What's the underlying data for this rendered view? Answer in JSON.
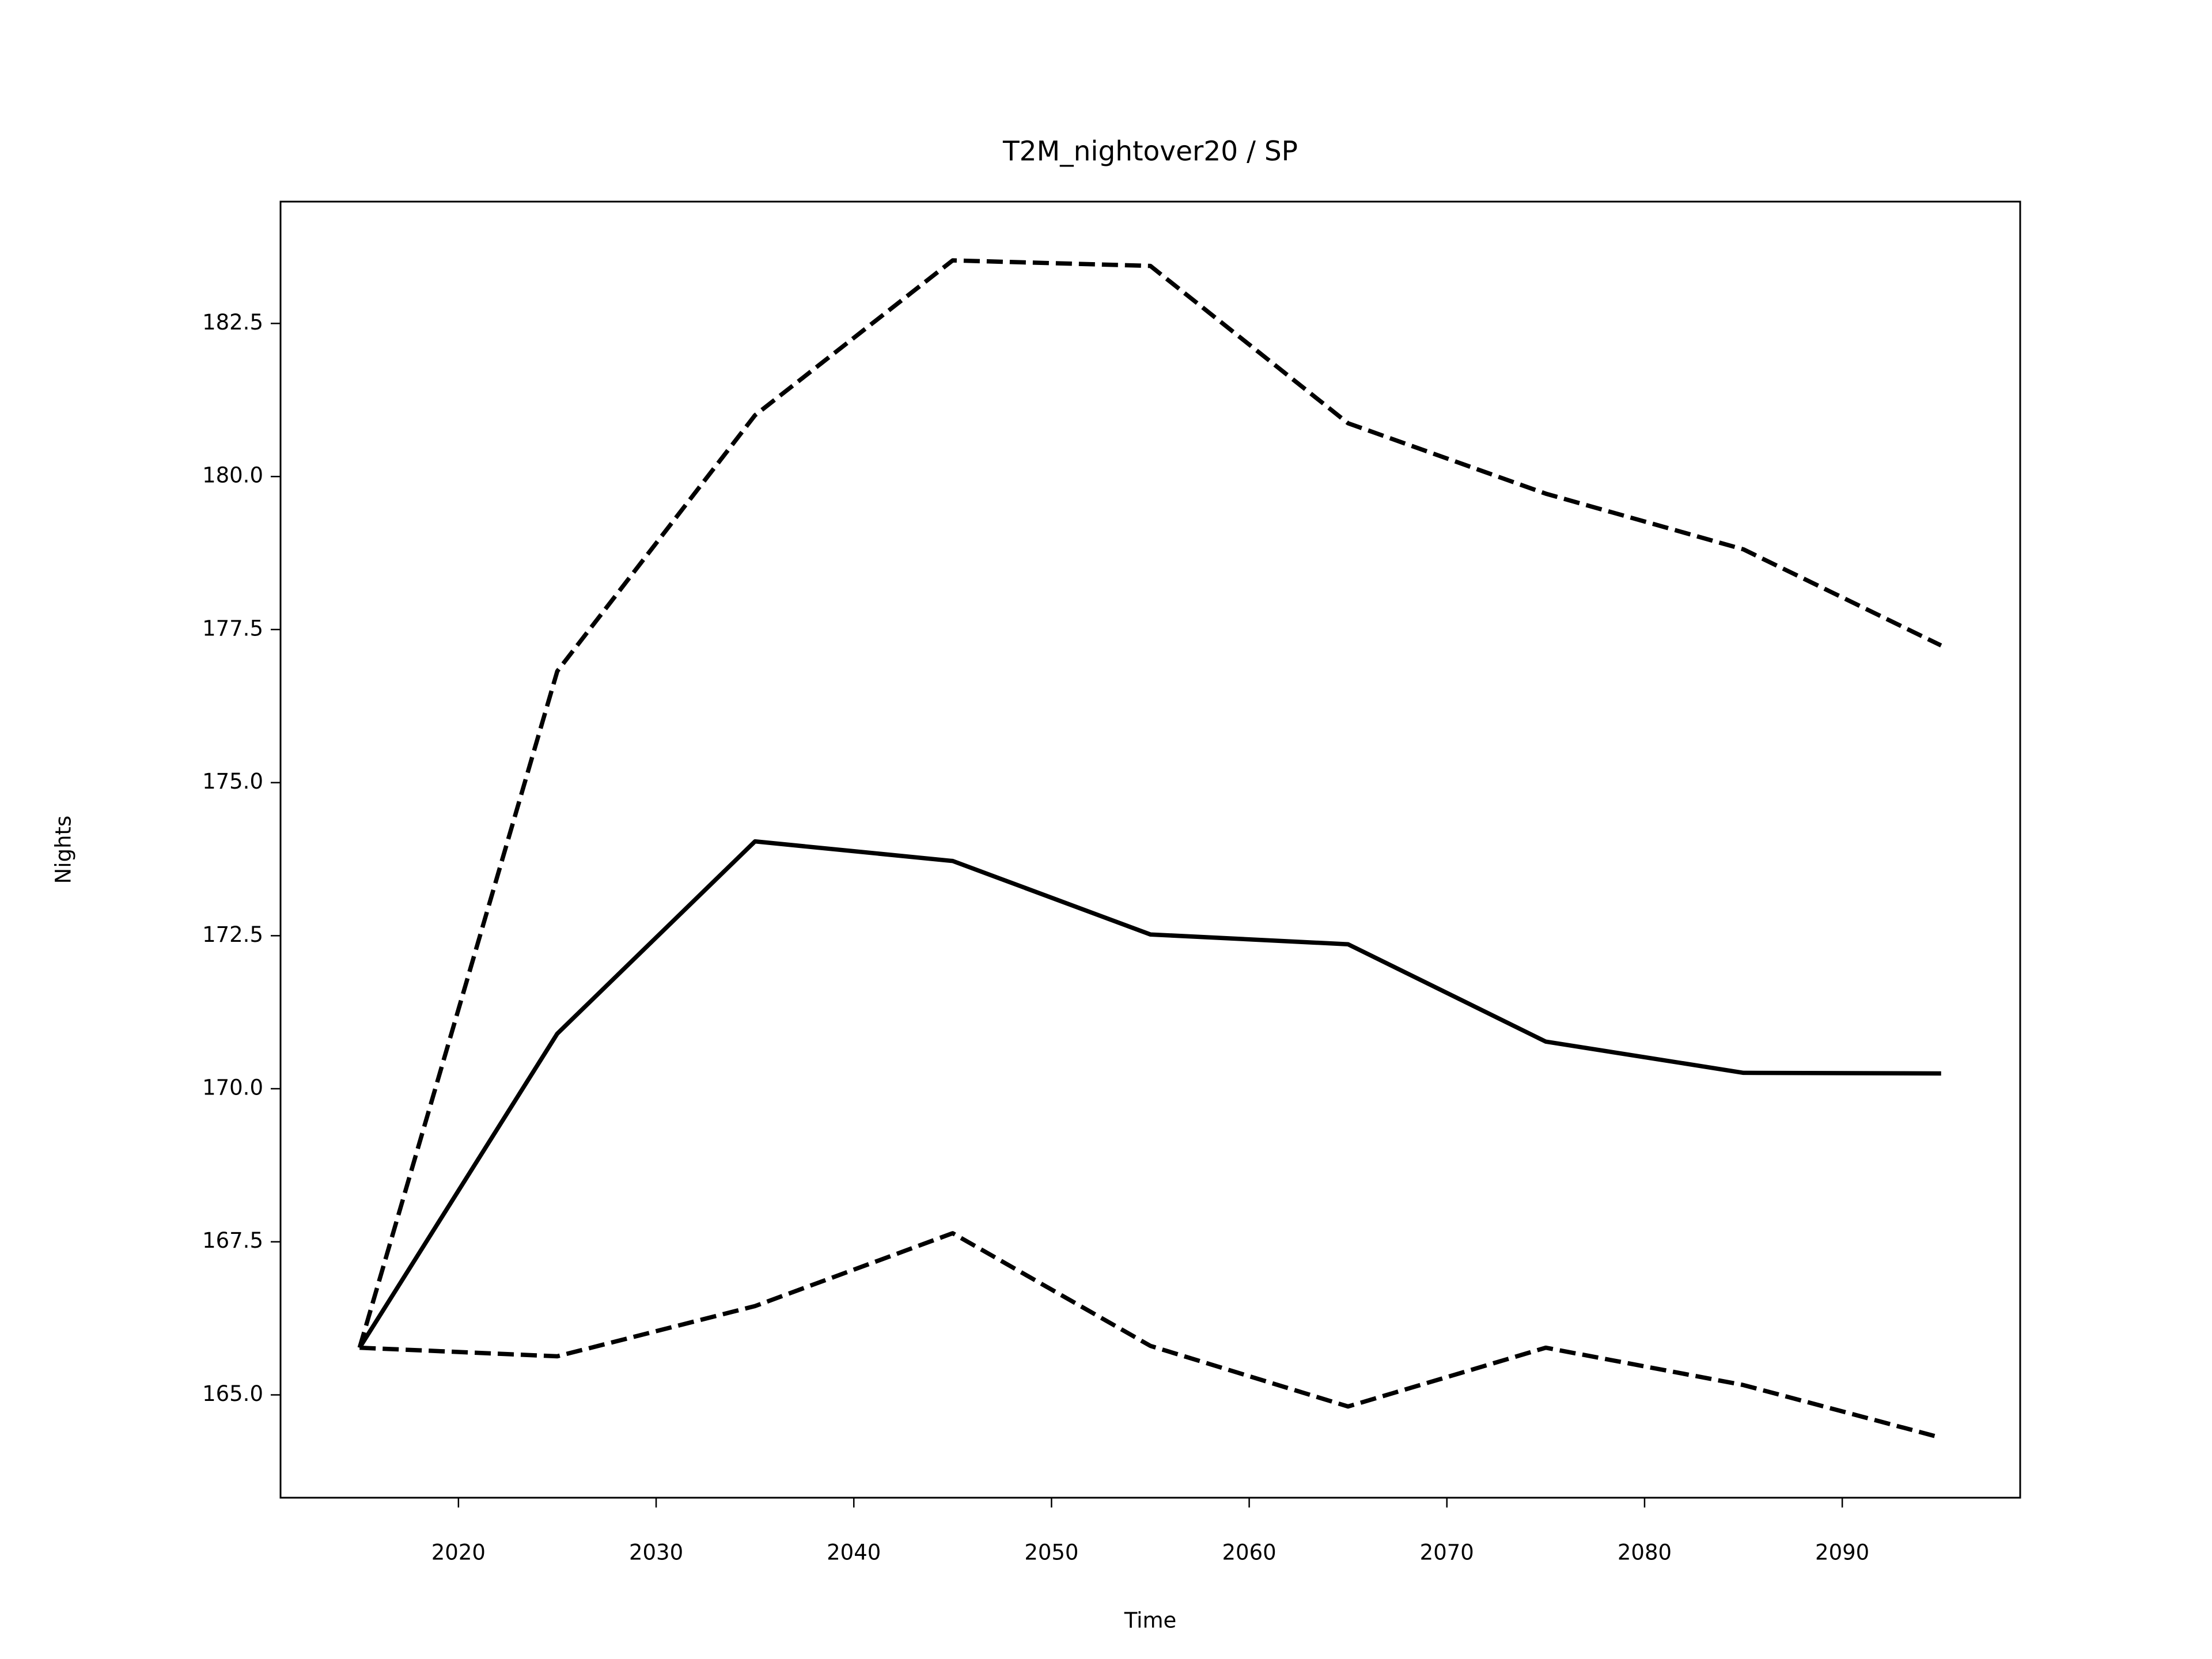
{
  "chart_data": {
    "type": "line",
    "title": "T2M_nightover20 / SP",
    "xlabel": "Time",
    "ylabel": "Nights",
    "x": [
      2015,
      2025,
      2035,
      2045,
      2055,
      2065,
      2075,
      2085,
      2095
    ],
    "series": [
      {
        "color": "#000000",
        "dashed": false,
        "values": [
          165.77,
          170.9,
          174.04,
          173.72,
          172.52,
          172.36,
          170.77,
          170.26,
          170.25
        ]
      },
      {
        "color": "#000000",
        "dashed": true,
        "values": [
          165.77,
          176.82,
          181.0,
          183.53,
          183.44,
          180.87,
          179.72,
          178.81,
          177.24
        ]
      },
      {
        "color": "#000000",
        "dashed": true,
        "values": [
          165.77,
          165.63,
          166.45,
          167.64,
          165.8,
          164.81,
          165.77,
          165.16,
          164.3
        ]
      }
    ],
    "xlim": [
      2011,
      2099
    ],
    "xticks": [
      2020,
      2030,
      2040,
      2050,
      2060,
      2070,
      2080,
      2090
    ],
    "ylim": [
      163.32,
      184.49
    ],
    "yticks": [
      {
        "value": 165,
        "label": "165.0"
      },
      167.5,
      {
        "value": 170,
        "label": "170.0"
      },
      172.5,
      {
        "value": 175,
        "label": "175.0"
      },
      177.5,
      {
        "value": 180,
        "label": "180.0"
      },
      182.5
    ],
    "grid": false
  }
}
